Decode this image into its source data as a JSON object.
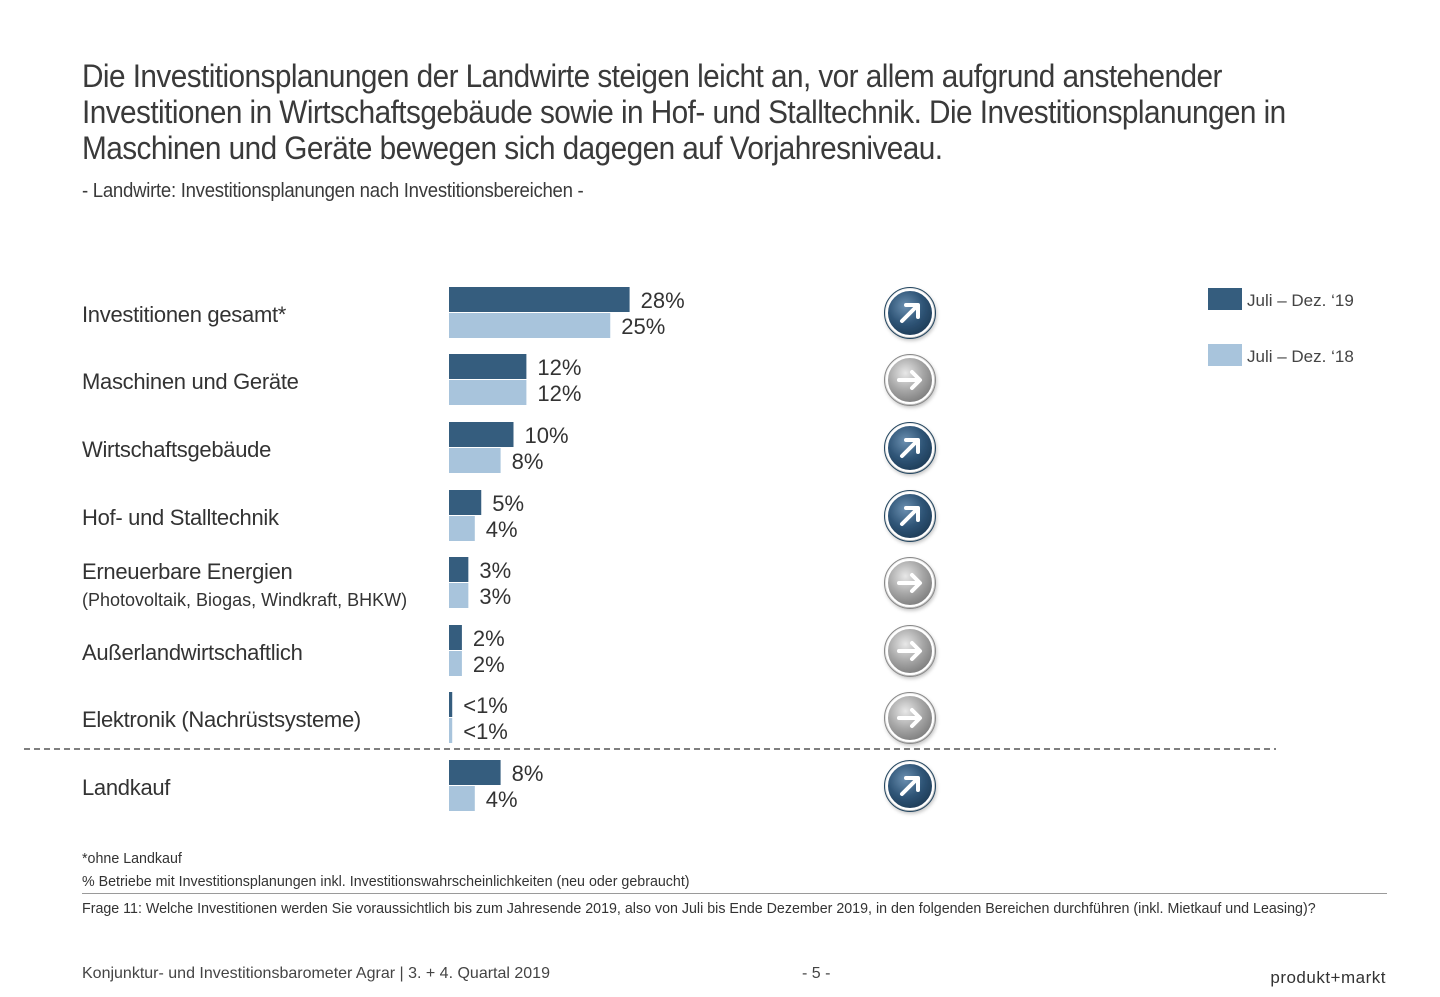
{
  "headline": [
    "Die Investitionsplanungen der Landwirte steigen leicht an, vor allem aufgrund anstehender",
    "Investitionen in Wirtschaftsgebäude sowie in Hof- und Stalltechnik. Die Investitionsplanungen in",
    "Maschinen und Geräte bewegen sich dagegen auf Vorjahresniveau."
  ],
  "subtitle": "- Landwirte: Investitionsplanungen nach Investitionsbereichen -",
  "chart_data": {
    "type": "bar",
    "orientation": "horizontal",
    "legend_position": "top-right",
    "grid": false,
    "categories": [
      {
        "label": "Investitionen gesamt*",
        "sublabel": ""
      },
      {
        "label": "Maschinen und Geräte",
        "sublabel": ""
      },
      {
        "label": "Wirtschaftsgebäude",
        "sublabel": ""
      },
      {
        "label": "Hof- und Stalltechnik",
        "sublabel": ""
      },
      {
        "label": "Erneuerbare Energien",
        "sublabel": "(Photovoltaik, Biogas, Windkraft, BHKW)"
      },
      {
        "label": "Außerlandwirtschaftlich",
        "sublabel": ""
      },
      {
        "label": "Elektronik (Nachrüstsysteme)",
        "sublabel": ""
      },
      {
        "label": "Landkauf",
        "sublabel": ""
      }
    ],
    "series": [
      {
        "name": "Juli – Dez. ‘19",
        "color": "#355d7e",
        "values": [
          28,
          12,
          10,
          5,
          3,
          2,
          0.5,
          8
        ],
        "labels": [
          "28%",
          "12%",
          "10%",
          "5%",
          "3%",
          "2%",
          "<1%",
          "8%"
        ]
      },
      {
        "name": "Juli – Dez. ‘18",
        "color": "#a8c4dc",
        "values": [
          25,
          12,
          8,
          4,
          3,
          2,
          0.5,
          4
        ],
        "labels": [
          "25%",
          "12%",
          "8%",
          "4%",
          "3%",
          "2%",
          "<1%",
          "4%"
        ]
      }
    ],
    "trend_indicators": [
      "up",
      "flat",
      "up",
      "up",
      "flat",
      "flat",
      "flat",
      "up"
    ],
    "trend_colors": {
      "up": "#2f5577",
      "flat": "#9a9a9a"
    },
    "separator_before": "Landkauf"
  },
  "footnotes": [
    "*ohne Landkauf",
    "% Betriebe mit Investitionsplanungen inkl. Investitionswahrscheinlichkeiten (neu oder gebraucht)",
    "Frage 11: Welche Investitionen werden Sie voraussichtlich bis zum Jahresende 2019, also von Juli bis Ende Dezember 2019, in den folgenden Bereichen durchführen (inkl. Mietkauf und Leasing)?"
  ],
  "footer": {
    "left": "Konjunktur- und Investitionsbarometer Agrar | 3. + 4. Quartal 2019",
    "page": "- 5 -",
    "brand": "produkt+markt"
  }
}
